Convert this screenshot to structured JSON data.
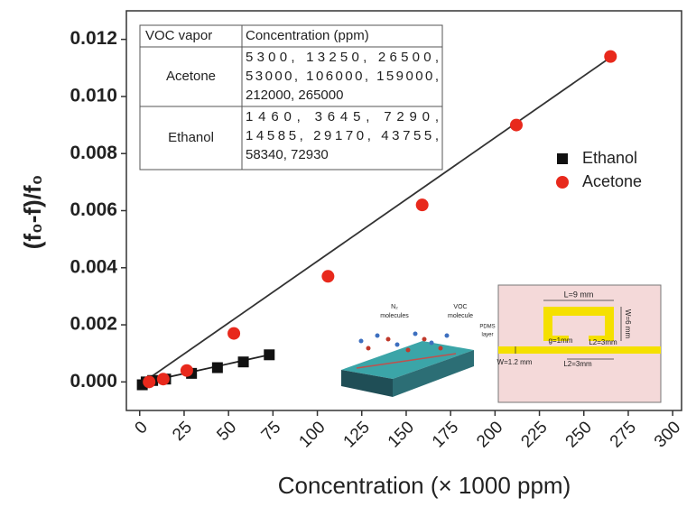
{
  "chart_data": {
    "type": "scatter",
    "x_label": "Concentration (× 1000 ppm)",
    "y_label": "(f₀-f)/f₀",
    "xlim": [
      -7.5,
      305
    ],
    "ylim": [
      -0.001,
      0.013
    ],
    "xticks": [
      0,
      25,
      50,
      75,
      100,
      125,
      150,
      175,
      200,
      225,
      250,
      275,
      300
    ],
    "yticks": [
      {
        "value": 0,
        "label": "0.000"
      },
      {
        "value": 0.002,
        "label": "0.002"
      },
      {
        "value": 0.004,
        "label": "0.004"
      },
      {
        "value": 0.006,
        "label": "0.006"
      },
      {
        "value": 0.008,
        "label": "0.008"
      },
      {
        "value": 0.01,
        "label": "0.010"
      },
      {
        "value": 0.012,
        "label": "0.012"
      }
    ],
    "legend": "right",
    "series": [
      {
        "name": "Ethanol",
        "color": "#111111",
        "marker": "square",
        "x": [
          1.46,
          3.645,
          7.29,
          14.585,
          29.17,
          43.755,
          58.34,
          72.93
        ],
        "values": [
          -0.0001,
          0,
          5e-05,
          0.0001,
          0.0003,
          0.0005,
          0.0007,
          0.00095
        ]
      },
      {
        "name": "Acetone",
        "color": "#e8291c",
        "marker": "circle",
        "x": [
          5.3,
          13.25,
          26.5,
          53,
          106,
          159,
          212,
          265
        ],
        "values": [
          0,
          0.0001,
          0.0004,
          0.0017,
          0.0037,
          0.0062,
          0.009,
          0.0114
        ]
      }
    ],
    "fits": [
      {
        "color": "#222222",
        "x": [
          0,
          73
        ],
        "values": [
          -5e-05,
          0.00095
        ]
      },
      {
        "color": "#333333",
        "x": [
          0,
          268
        ],
        "values": [
          -0.0001,
          0.0115
        ]
      }
    ],
    "table": {
      "headers": [
        "VOC vapor",
        "Concentration (ppm)"
      ],
      "rows": [
        {
          "name": "Acetone",
          "lines": [
            "5300, 13250, 26500,",
            "53000, 106000, 159000,",
            "212000, 265000"
          ]
        },
        {
          "name": "Ethanol",
          "lines": [
            "1460, 3645, 7290,",
            "14585, 29170, 43755,",
            "58340, 72930"
          ]
        }
      ]
    },
    "inset_labels": [
      "N₂",
      "molecules",
      "VOC",
      "molecule",
      "PDMS",
      "layer",
      "L=9 mm",
      "W=6 mm",
      "g=1mm",
      "L2=3mm",
      "W=1.2 mm",
      "L2=3mm"
    ]
  }
}
